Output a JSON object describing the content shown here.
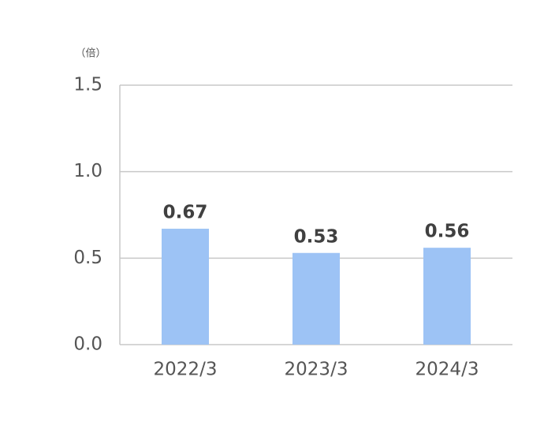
{
  "chart_data": {
    "type": "bar",
    "ylabel": "（倍）",
    "categories": [
      "2022/3",
      "2023/3",
      "2024/3"
    ],
    "values": [
      0.67,
      0.53,
      0.56
    ],
    "color": "#9dc3f5",
    "ylim": [
      0,
      1.5
    ],
    "yticks": [
      {
        "value": 0,
        "label": "0.0"
      },
      0.5,
      {
        "value": 1,
        "label": "1.0"
      },
      1.5
    ],
    "grid": true
  }
}
